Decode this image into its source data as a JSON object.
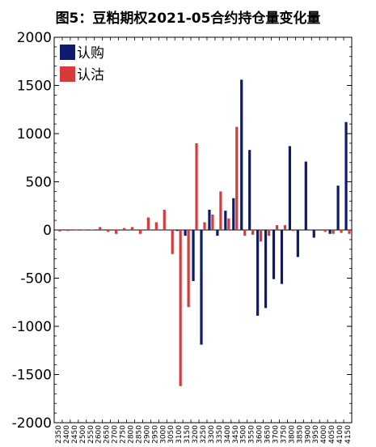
{
  "chart_data": {
    "type": "bar",
    "title": "图5：豆粕期权2021-05合约持仓量变化量",
    "xlabel": "",
    "ylabel": "",
    "ylim": [
      -2000,
      2000
    ],
    "yticks": [
      2000,
      1500,
      1000,
      500,
      0,
      -500,
      -1000,
      -1500,
      -2000
    ],
    "yticklabels": [
      "2000",
      "1500",
      "1000",
      "500",
      "0",
      "-500",
      "-1000",
      "-1500",
      "-2000"
    ],
    "legend_position": "top-left",
    "grid": false,
    "categories": [
      "2350",
      "2400",
      "2450",
      "2500",
      "2550",
      "2600",
      "2650",
      "2700",
      "2750",
      "2800",
      "2850",
      "2900",
      "2950",
      "3000",
      "3050",
      "3100",
      "3150",
      "3200",
      "3250",
      "3300",
      "3350",
      "3400",
      "3450",
      "3500",
      "3550",
      "3600",
      "3650",
      "3700",
      "3750",
      "3800",
      "3850",
      "3900",
      "3950",
      "4000",
      "4050",
      "4100",
      "4150"
    ],
    "series": [
      {
        "name": "认购",
        "color": "#0d1a6e",
        "values": [
          0,
          0,
          0,
          0,
          0,
          0,
          0,
          0,
          0,
          0,
          0,
          0,
          0,
          0,
          0,
          -10,
          -60,
          -530,
          -1190,
          210,
          -60,
          200,
          330,
          1560,
          830,
          -890,
          -810,
          -510,
          -560,
          870,
          -280,
          710,
          -80,
          0,
          -40,
          460,
          1120
        ]
      },
      {
        "name": "认沽",
        "color": "#d63a3a",
        "values": [
          -15,
          -10,
          -5,
          -5,
          5,
          30,
          -20,
          -40,
          20,
          30,
          -40,
          130,
          80,
          210,
          -250,
          -1620,
          -800,
          900,
          80,
          160,
          400,
          120,
          1070,
          -60,
          -50,
          -120,
          -60,
          50,
          50,
          -10,
          0,
          0,
          0,
          -20,
          -40,
          -30,
          -40
        ]
      }
    ]
  }
}
